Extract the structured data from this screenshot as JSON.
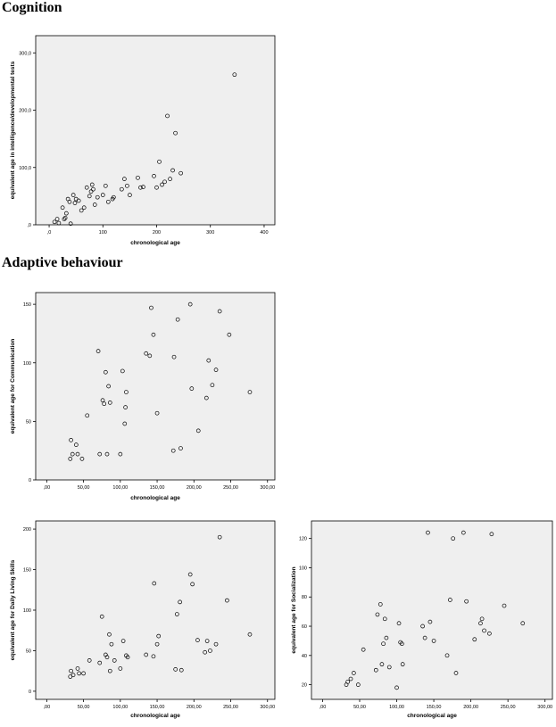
{
  "sections": {
    "cognition": "Cognition",
    "adaptive": "Adaptive behaviour"
  },
  "chart_data": [
    {
      "id": "cognition",
      "type": "scatter",
      "xlabel": "chronological age",
      "ylabel": "equivalent age in intelligence/developmental tests",
      "xlim": [
        -25,
        420
      ],
      "ylim": [
        0,
        330
      ],
      "xticks": [
        0,
        100,
        200,
        300,
        400
      ],
      "xtick_labels": [
        ",0",
        "100",
        "200",
        "300",
        "400"
      ],
      "yticks": [
        0,
        100,
        200,
        300
      ],
      "ytick_labels": [
        ",0",
        "100,0",
        "200,0",
        "300,0"
      ],
      "grid": false,
      "points": [
        [
          10,
          5
        ],
        [
          15,
          10
        ],
        [
          18,
          3
        ],
        [
          25,
          30
        ],
        [
          28,
          10
        ],
        [
          30,
          12
        ],
        [
          32,
          20
        ],
        [
          35,
          45
        ],
        [
          38,
          40
        ],
        [
          40,
          2
        ],
        [
          45,
          52
        ],
        [
          48,
          38
        ],
        [
          50,
          45
        ],
        [
          55,
          42
        ],
        [
          60,
          25
        ],
        [
          65,
          30
        ],
        [
          70,
          65
        ],
        [
          75,
          50
        ],
        [
          78,
          58
        ],
        [
          80,
          70
        ],
        [
          82,
          62
        ],
        [
          85,
          35
        ],
        [
          90,
          48
        ],
        [
          100,
          52
        ],
        [
          105,
          68
        ],
        [
          110,
          40
        ],
        [
          118,
          45
        ],
        [
          120,
          48
        ],
        [
          135,
          62
        ],
        [
          140,
          80
        ],
        [
          145,
          68
        ],
        [
          150,
          52
        ],
        [
          165,
          82
        ],
        [
          170,
          65
        ],
        [
          175,
          66
        ],
        [
          195,
          85
        ],
        [
          200,
          65
        ],
        [
          205,
          110
        ],
        [
          210,
          70
        ],
        [
          215,
          75
        ],
        [
          220,
          190
        ],
        [
          225,
          80
        ],
        [
          230,
          95
        ],
        [
          235,
          160
        ],
        [
          245,
          90
        ],
        [
          345,
          262
        ]
      ]
    },
    {
      "id": "communication",
      "type": "scatter",
      "xlabel": "chronological age",
      "ylabel": "equivalent age for Communication",
      "xlim": [
        -15,
        310
      ],
      "ylim": [
        0,
        160
      ],
      "xticks": [
        0,
        50,
        100,
        150,
        200,
        250,
        300
      ],
      "xtick_labels": [
        ",00",
        "50,00",
        "100,00",
        "150,00",
        "200,00",
        "250,00",
        "300,00"
      ],
      "yticks": [
        0,
        50,
        100,
        150
      ],
      "ytick_labels": [
        "0",
        "50",
        "100",
        "150"
      ],
      "grid": false,
      "points": [
        [
          32,
          18
        ],
        [
          33,
          34
        ],
        [
          35,
          22
        ],
        [
          40,
          30
        ],
        [
          42,
          22
        ],
        [
          48,
          18
        ],
        [
          55,
          55
        ],
        [
          70,
          110
        ],
        [
          72,
          22
        ],
        [
          76,
          68
        ],
        [
          78,
          65
        ],
        [
          80,
          92
        ],
        [
          82,
          22
        ],
        [
          84,
          80
        ],
        [
          86,
          66
        ],
        [
          100,
          22
        ],
        [
          103,
          93
        ],
        [
          106,
          48
        ],
        [
          107,
          62
        ],
        [
          108,
          75
        ],
        [
          135,
          108
        ],
        [
          140,
          106
        ],
        [
          142,
          147
        ],
        [
          145,
          124
        ],
        [
          150,
          57
        ],
        [
          172,
          25
        ],
        [
          173,
          105
        ],
        [
          178,
          137
        ],
        [
          182,
          27
        ],
        [
          195,
          150
        ],
        [
          197,
          78
        ],
        [
          206,
          42
        ],
        [
          217,
          70
        ],
        [
          220,
          102
        ],
        [
          225,
          81
        ],
        [
          230,
          94
        ],
        [
          235,
          144
        ],
        [
          248,
          124
        ],
        [
          276,
          75
        ]
      ]
    },
    {
      "id": "daily-living",
      "type": "scatter",
      "xlabel": "chronological age",
      "ylabel": "equivalent age for Daily Living Skills",
      "xlim": [
        -15,
        310
      ],
      "ylim": [
        -10,
        210
      ],
      "xticks": [
        0,
        50,
        100,
        150,
        200,
        250,
        300
      ],
      "xtick_labels": [
        ",00",
        "50,00",
        "100,00",
        "150,00",
        "200,00",
        "250,00",
        "300,00"
      ],
      "yticks": [
        0,
        50,
        100,
        150,
        200
      ],
      "ytick_labels": [
        "0",
        "50",
        "100",
        "150",
        "200"
      ],
      "grid": false,
      "points": [
        [
          32,
          18
        ],
        [
          33,
          25
        ],
        [
          36,
          20
        ],
        [
          42,
          28
        ],
        [
          44,
          22
        ],
        [
          50,
          22
        ],
        [
          58,
          38
        ],
        [
          72,
          35
        ],
        [
          75,
          92
        ],
        [
          80,
          45
        ],
        [
          82,
          42
        ],
        [
          85,
          70
        ],
        [
          86,
          25
        ],
        [
          88,
          58
        ],
        [
          92,
          38
        ],
        [
          100,
          28
        ],
        [
          104,
          62
        ],
        [
          108,
          44
        ],
        [
          110,
          42
        ],
        [
          135,
          45
        ],
        [
          145,
          43
        ],
        [
          146,
          133
        ],
        [
          150,
          58
        ],
        [
          152,
          68
        ],
        [
          175,
          27
        ],
        [
          177,
          95
        ],
        [
          181,
          110
        ],
        [
          183,
          26
        ],
        [
          195,
          144
        ],
        [
          198,
          132
        ],
        [
          205,
          63
        ],
        [
          215,
          48
        ],
        [
          218,
          62
        ],
        [
          222,
          50
        ],
        [
          230,
          58
        ],
        [
          235,
          190
        ],
        [
          245,
          112
        ],
        [
          276,
          70
        ]
      ]
    },
    {
      "id": "socialization",
      "type": "scatter",
      "xlabel": "chronological age",
      "ylabel": "equivalent age for Socialization",
      "xlim": [
        -15,
        310
      ],
      "ylim": [
        10,
        132
      ],
      "xticks": [
        0,
        50,
        100,
        150,
        200,
        250,
        300
      ],
      "xtick_labels": [
        ",00",
        "50,00",
        "100,00",
        "150,00",
        "200,00",
        "250,00",
        "300,00"
      ],
      "yticks": [
        20,
        40,
        60,
        80,
        100,
        120
      ],
      "ytick_labels": [
        "20",
        "40",
        "60",
        "80",
        "100",
        "120"
      ],
      "grid": false,
      "points": [
        [
          32,
          20
        ],
        [
          34,
          22
        ],
        [
          38,
          24
        ],
        [
          42,
          28
        ],
        [
          48,
          20
        ],
        [
          55,
          44
        ],
        [
          72,
          30
        ],
        [
          74,
          68
        ],
        [
          78,
          75
        ],
        [
          80,
          34
        ],
        [
          82,
          48
        ],
        [
          84,
          65
        ],
        [
          86,
          52
        ],
        [
          90,
          32
        ],
        [
          100,
          18
        ],
        [
          103,
          62
        ],
        [
          105,
          49
        ],
        [
          107,
          48
        ],
        [
          108,
          34
        ],
        [
          135,
          60
        ],
        [
          138,
          52
        ],
        [
          142,
          124
        ],
        [
          145,
          63
        ],
        [
          150,
          50
        ],
        [
          168,
          40
        ],
        [
          172,
          78
        ],
        [
          176,
          120
        ],
        [
          180,
          28
        ],
        [
          190,
          124
        ],
        [
          194,
          77
        ],
        [
          205,
          51
        ],
        [
          213,
          62
        ],
        [
          215,
          65
        ],
        [
          218,
          57
        ],
        [
          225,
          55
        ],
        [
          228,
          123
        ],
        [
          245,
          74
        ],
        [
          270,
          62
        ]
      ]
    }
  ]
}
